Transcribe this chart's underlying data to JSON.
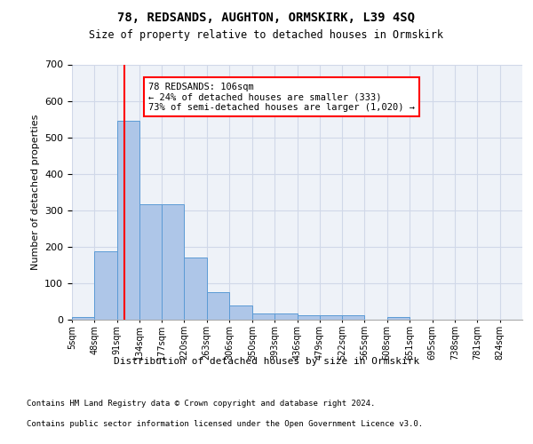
{
  "title": "78, REDSANDS, AUGHTON, ORMSKIRK, L39 4SQ",
  "subtitle": "Size of property relative to detached houses in Ormskirk",
  "xlabel": "Distribution of detached houses by size in Ormskirk",
  "ylabel": "Number of detached properties",
  "bar_edges": [
    5,
    48,
    91,
    134,
    177,
    220,
    263,
    306,
    350,
    393,
    436,
    479,
    522,
    565,
    608,
    651,
    695,
    738,
    781,
    824,
    867
  ],
  "bar_heights": [
    8,
    188,
    545,
    316,
    316,
    170,
    75,
    40,
    16,
    16,
    13,
    13,
    13,
    0,
    8,
    0,
    0,
    0,
    0,
    0
  ],
  "bar_color": "#aec6e8",
  "bar_edge_color": "#5b9bd5",
  "grid_color": "#d0d8e8",
  "background_color": "#eef2f8",
  "vline_x": 106,
  "vline_color": "red",
  "annotation_text": "78 REDSANDS: 106sqm\n← 24% of detached houses are smaller (333)\n73% of semi-detached houses are larger (1,020) →",
  "annotation_box_color": "red",
  "ylim": [
    0,
    700
  ],
  "yticks": [
    0,
    100,
    200,
    300,
    400,
    500,
    600,
    700
  ],
  "footer_line1": "Contains HM Land Registry data © Crown copyright and database right 2024.",
  "footer_line2": "Contains public sector information licensed under the Open Government Licence v3.0."
}
